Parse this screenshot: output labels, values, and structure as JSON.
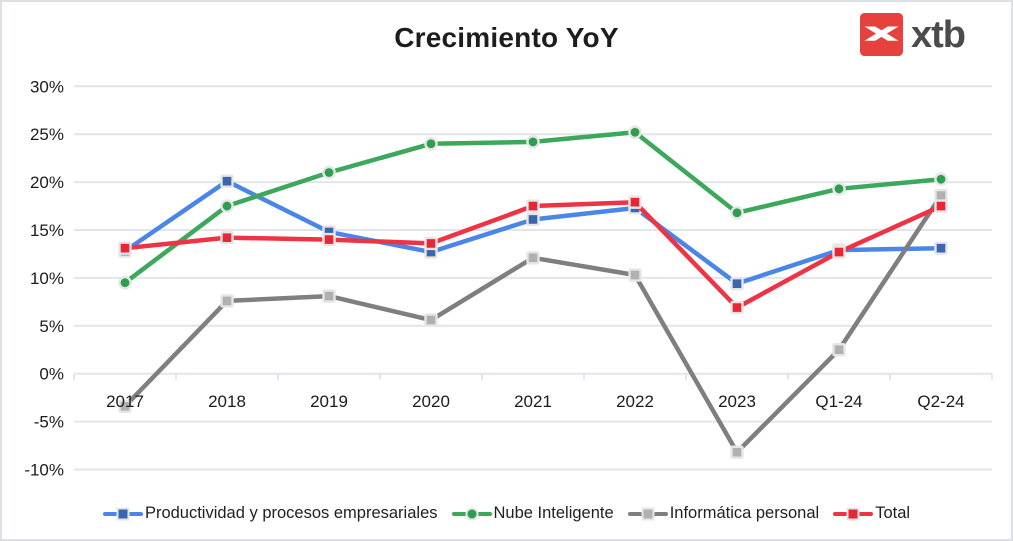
{
  "page": {
    "title": "Crecimiento YoY"
  },
  "logo": {
    "text": "xtb",
    "icon": "xtb-x-icon",
    "box_color": "#e6413c",
    "glyph_color": "#ffffff",
    "text_color": "#4b4b4b"
  },
  "axes": {
    "y_tick_labels": [
      "30%",
      "25%",
      "20%",
      "15%",
      "10%",
      "5%",
      "0%",
      "-5%",
      "-10%"
    ],
    "y_tick_values": [
      30,
      25,
      20,
      15,
      10,
      5,
      0,
      -5,
      -10
    ],
    "x_tick_labels": [
      "2017",
      "2018",
      "2019",
      "2020",
      "2021",
      "2022",
      "2023",
      "Q1-24",
      "Q2-24"
    ]
  },
  "chart_data": {
    "type": "line",
    "title": "Crecimiento YoY",
    "categories": [
      "2017",
      "2018",
      "2019",
      "2020",
      "2021",
      "2022",
      "2023",
      "Q1-24",
      "Q2-24"
    ],
    "series": [
      {
        "name": "Productividad y procesos empresariales",
        "color": "#4a86e8",
        "marker_color": "#3a66b0",
        "marker": "square",
        "values": [
          12.8,
          20.1,
          14.8,
          12.7,
          16.1,
          17.3,
          9.4,
          12.9,
          13.1
        ]
      },
      {
        "name": "Nube Inteligente",
        "color": "#3ca85c",
        "marker_color": "#2e9e4d",
        "marker": "circle",
        "values": [
          9.5,
          17.5,
          21.0,
          24.0,
          24.2,
          25.2,
          16.8,
          19.3,
          20.3
        ]
      },
      {
        "name": "Informática personal",
        "color": "#7f7f7f",
        "marker_color": "#b0b0b0",
        "marker": "square",
        "values": [
          -3.4,
          7.6,
          8.1,
          5.6,
          12.1,
          10.3,
          -8.2,
          2.5,
          18.6
        ]
      },
      {
        "name": "Total",
        "color": "#ee3444",
        "marker_color": "#e82636",
        "marker": "square",
        "values": [
          13.1,
          14.2,
          14.0,
          13.6,
          17.5,
          17.9,
          6.9,
          12.7,
          17.5
        ]
      }
    ],
    "ylim": [
      -10,
      30
    ],
    "value_format": "percent",
    "grid": true,
    "gridline_color": "#e2e6ec",
    "axis_text_color": "#1c1c1c",
    "legend_position": "bottom"
  }
}
